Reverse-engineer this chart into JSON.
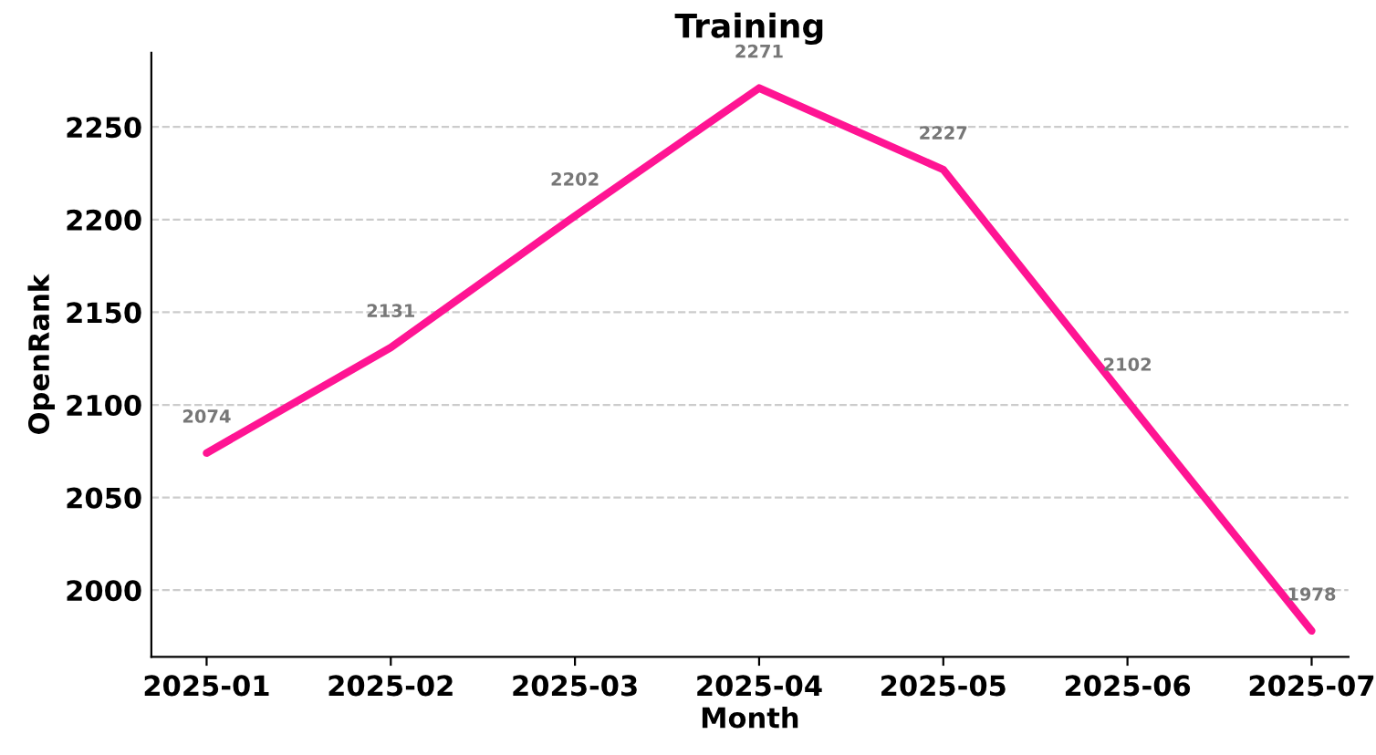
{
  "chart_data": {
    "type": "line",
    "title": "Training",
    "xlabel": "Month",
    "ylabel": "OpenRank",
    "categories": [
      "2025-01",
      "2025-02",
      "2025-03",
      "2025-04",
      "2025-05",
      "2025-06",
      "2025-07"
    ],
    "series": [
      {
        "color": "#ff1493",
        "values": [
          2074,
          2131,
          2202,
          2271,
          2227,
          2102,
          1978
        ]
      }
    ],
    "ylim": [
      1964,
      2290
    ],
    "yticks": [
      2000,
      2050,
      2100,
      2150,
      2200,
      2250
    ],
    "grid": "y",
    "data_labels": true
  }
}
